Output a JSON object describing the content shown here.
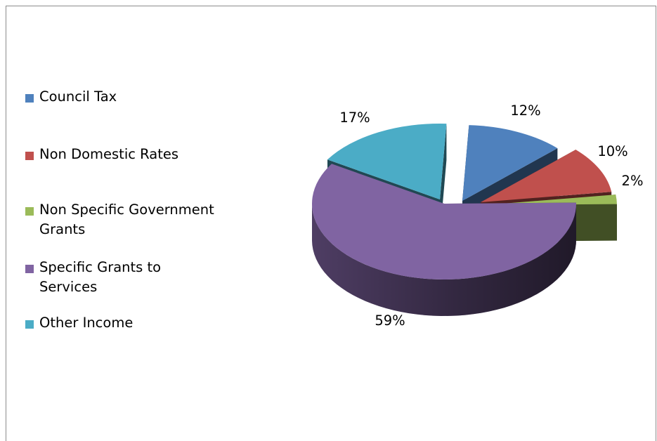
{
  "chart_data": {
    "type": "pie",
    "title": "",
    "legend_position": "left",
    "categories": [
      "Council Tax",
      "Non Domestic Rates",
      "Non Specific Government Grants",
      "Specific Grants to Services",
      "Other Income"
    ],
    "values": [
      12,
      10,
      2,
      59,
      17
    ],
    "data_labels": [
      "12%",
      "10%",
      "2%",
      "59%",
      "17%"
    ],
    "colors": [
      "#4f81bd",
      "#c0504d",
      "#9bbb59",
      "#8064a2",
      "#4bacc6"
    ],
    "style": "3d-exploded"
  }
}
